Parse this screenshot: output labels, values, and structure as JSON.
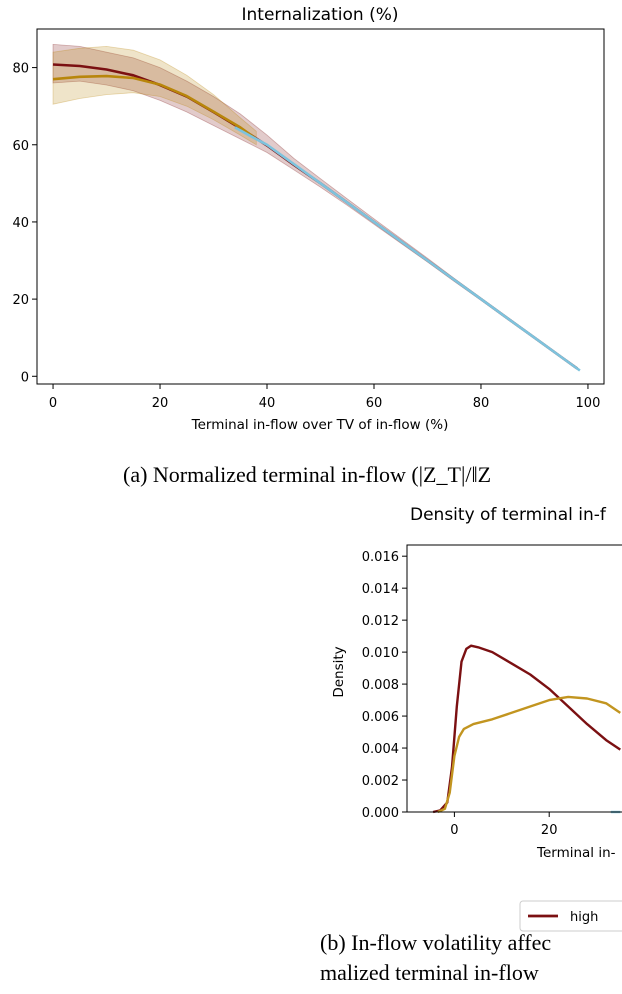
{
  "figure_a": {
    "caption": "(a) Normalized terminal in-flow (|Z_T|/‖Z",
    "chart_data": {
      "type": "line",
      "title": "Internalization (%)",
      "xlabel": "Terminal in-flow over TV of in-flow (%)",
      "ylabel": "",
      "xlim": [
        -3,
        103
      ],
      "ylim": [
        -2,
        90
      ],
      "xticks": [
        0,
        20,
        40,
        60,
        80,
        100
      ],
      "yticks": [
        0,
        20,
        40,
        60,
        80
      ],
      "grid": false,
      "series": [
        {
          "color": "#7b1012",
          "x": [
            0,
            5,
            10,
            15,
            20,
            25,
            30,
            35,
            40,
            45,
            50,
            55,
            60,
            65,
            70,
            75,
            80,
            85,
            90,
            95,
            98
          ],
          "y": [
            80.8,
            80.4,
            79.5,
            78.0,
            75.5,
            72.5,
            68.5,
            64.3,
            59.8,
            54.8,
            50.0,
            45.0,
            40.0,
            35.0,
            30.0,
            25.0,
            20.0,
            15.0,
            10.0,
            5.0,
            2.0
          ],
          "band_lower": [
            76,
            76.5,
            75.5,
            74,
            71.5,
            68.5,
            65,
            61.5,
            58,
            53.5,
            49,
            44.3,
            39.4,
            34.5,
            29.6,
            24.6,
            19.7,
            14.7,
            9.8,
            4.8,
            1.8
          ],
          "band_upper": [
            86,
            85.5,
            84,
            82.5,
            80,
            76.5,
            72.5,
            68,
            62.5,
            56.5,
            51.2,
            46,
            40.8,
            35.7,
            30.6,
            25.4,
            20.3,
            15.3,
            10.2,
            5.2,
            2.2
          ]
        },
        {
          "color": "#b8860b",
          "x": [
            0,
            5,
            10,
            15,
            20,
            25,
            30,
            35,
            38
          ],
          "y": [
            77,
            77.6,
            77.8,
            77.3,
            75.6,
            72.6,
            68.6,
            64.5,
            61.5
          ],
          "band_lower": [
            70.5,
            72,
            73,
            73.5,
            72.5,
            70,
            66.5,
            62.5,
            60
          ],
          "band_upper": [
            84,
            85,
            85.5,
            84.5,
            82,
            78,
            73,
            67,
            63.5
          ]
        },
        {
          "color": "#7ec3dd",
          "x": [
            34,
            37,
            40,
            45,
            50,
            55,
            60,
            65,
            70,
            75,
            80,
            85,
            90,
            95,
            98.5
          ],
          "y": [
            64.5,
            62.2,
            60,
            55,
            50,
            45,
            40,
            35,
            30,
            25,
            20,
            15,
            10,
            5,
            1.5
          ]
        }
      ]
    }
  },
  "figure_b": {
    "caption_line1": "(b) In-flow volatility affec",
    "caption_line2": "malized terminal in-flow",
    "legend_label": "high",
    "chart_data": {
      "type": "line",
      "title": "Density of terminal in-f",
      "xlabel": "Terminal in-",
      "ylabel": "Density",
      "xlim": [
        -10,
        35
      ],
      "ylim": [
        0,
        0.0167
      ],
      "xticks": [
        0,
        20
      ],
      "yticks": [
        "0.000",
        "0.002",
        "0.004",
        "0.006",
        "0.008",
        "0.010",
        "0.012",
        "0.014",
        "0.016"
      ],
      "grid": false,
      "series": [
        {
          "name": "high",
          "color": "#7b1012",
          "x": [
            -4.5,
            -3,
            -1.5,
            -0.5,
            0.5,
            1.5,
            2.5,
            3.5,
            5,
            8,
            12,
            16,
            20,
            24,
            28,
            32,
            35
          ],
          "y": [
            0.0,
            0.0001,
            0.0006,
            0.0028,
            0.0066,
            0.0094,
            0.0102,
            0.0104,
            0.0103,
            0.01,
            0.0093,
            0.0086,
            0.0077,
            0.0066,
            0.0055,
            0.0045,
            0.0039
          ]
        },
        {
          "name": "",
          "color": "#c29520",
          "x": [
            -3.5,
            -2,
            -1,
            0,
            1,
            2,
            4,
            8,
            12,
            16,
            20,
            24,
            28,
            32,
            35
          ],
          "y": [
            0.0,
            0.0002,
            0.0012,
            0.0035,
            0.0047,
            0.0052,
            0.0055,
            0.0058,
            0.0062,
            0.0066,
            0.007,
            0.0072,
            0.0071,
            0.0068,
            0.0062
          ]
        },
        {
          "name": "",
          "color": "#7ec3dd",
          "x": [
            33,
            35
          ],
          "y": [
            0.0,
            0.0
          ]
        }
      ]
    }
  }
}
